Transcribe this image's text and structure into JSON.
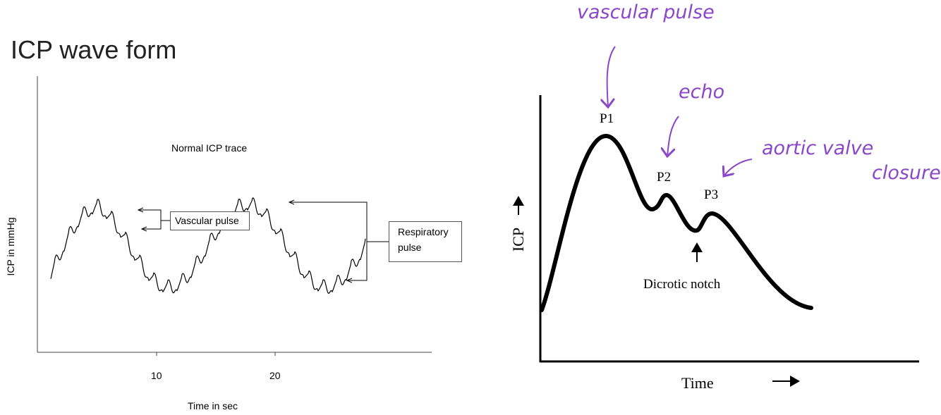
{
  "title": "ICP wave form",
  "left_diagram": {
    "caption": "Normal ICP trace",
    "y_label": "ICP in mmHg",
    "x_label": "Time in sec",
    "x_tick_labels": [
      "10",
      "20"
    ],
    "callouts": [
      "Vascular pulse",
      "Respiratory pulse"
    ]
  },
  "right_diagram": {
    "peaks": [
      "P1",
      "P2",
      "P3"
    ],
    "notch_label": "Dicrotic notch",
    "y_label": "ICP",
    "x_label": "Time"
  },
  "annotations": [
    "vascular pulse",
    "echo",
    "aortic valve",
    "closure"
  ]
}
